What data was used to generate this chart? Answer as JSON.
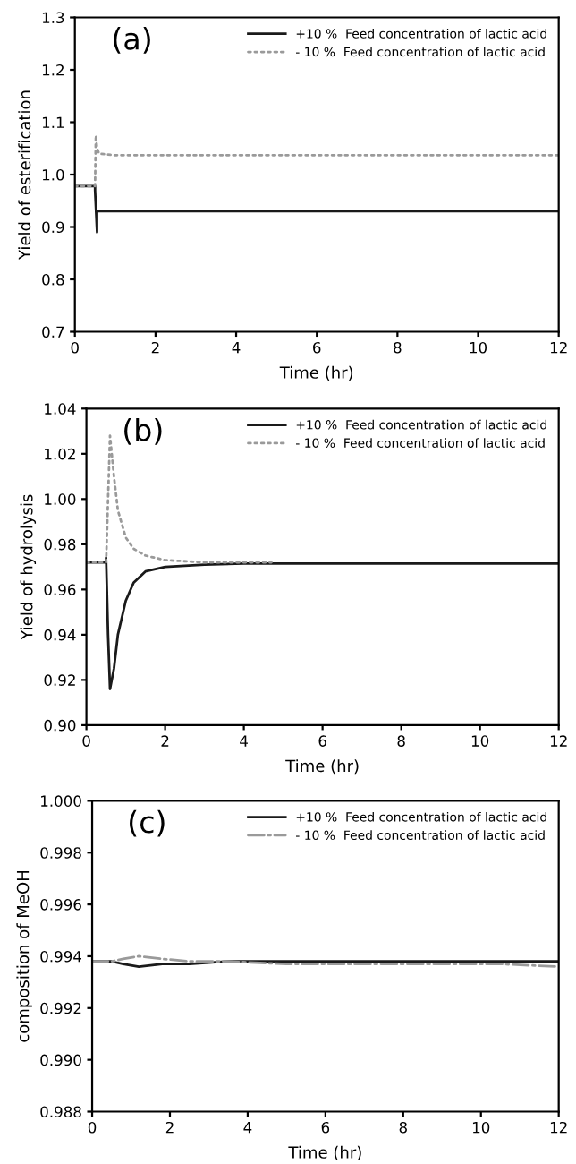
{
  "chart_data": [
    {
      "type": "line",
      "xlabel": "Time (hr)",
      "ylabel": "Yield of esterification",
      "annotations": [
        "(a)"
      ],
      "xlim": [
        0,
        12
      ],
      "xticks": [
        0,
        2,
        4,
        6,
        8,
        10,
        12
      ],
      "ylim": [
        0.7,
        1.3
      ],
      "yticks": [
        0.7,
        0.8,
        0.9,
        {
          "value": 1.0,
          "label": "1.0"
        },
        1.1,
        1.2,
        1.3
      ],
      "legend": "top right",
      "grid": false,
      "series": [
        {
          "name": "+10 %  Feed concentration of lactic acid",
          "color": "#1a1a1a",
          "line_style": "solid",
          "x": [
            0,
            0.5,
            0.5,
            0.55,
            0.55,
            0.6,
            12
          ],
          "values": [
            0.978,
            0.978,
            0.97,
            0.89,
            0.93,
            0.93,
            0.93
          ]
        },
        {
          "name": "- 10 %  Feed concentration of lactic acid",
          "color": "#9a9a9a",
          "line_style": "dotted",
          "x": [
            0,
            0.5,
            0.52,
            0.55,
            0.6,
            1,
            12
          ],
          "values": [
            0.978,
            0.978,
            1.075,
            1.05,
            1.04,
            1.037,
            1.037
          ]
        }
      ]
    },
    {
      "type": "line",
      "xlabel": "Time (hr)",
      "ylabel": "Yield of hydrolysis",
      "annotations": [
        "(b)"
      ],
      "xlim": [
        0,
        12
      ],
      "xticks": [
        0,
        2,
        4,
        6,
        8,
        10,
        12
      ],
      "ylim": [
        0.9,
        1.04
      ],
      "yticks": [
        {
          "value": 0.9,
          "label": "0.90"
        },
        0.92,
        0.94,
        0.96,
        0.98,
        {
          "value": 1.0,
          "label": "1.00"
        },
        1.02,
        1.04
      ],
      "legend": "top right",
      "grid": false,
      "series": [
        {
          "name": "+10 %  Feed concentration of lactic acid",
          "color": "#1a1a1a",
          "line_style": "solid",
          "x": [
            0,
            0.5,
            0.5,
            0.55,
            0.6,
            0.7,
            0.8,
            1.0,
            1.2,
            1.5,
            2,
            3,
            4,
            12
          ],
          "values": [
            0.972,
            0.972,
            0.974,
            0.94,
            0.916,
            0.925,
            0.94,
            0.955,
            0.963,
            0.968,
            0.97,
            0.971,
            0.9715,
            0.9715
          ]
        },
        {
          "name": "- 10 %  Feed concentration of lactic acid",
          "color": "#9a9a9a",
          "line_style": "dotted",
          "x": [
            0,
            0.5,
            0.55,
            0.6,
            0.7,
            0.8,
            1.0,
            1.2,
            1.5,
            2,
            3,
            4.7
          ],
          "values": [
            0.972,
            0.972,
            1.0,
            1.028,
            1.01,
            0.995,
            0.983,
            0.978,
            0.975,
            0.973,
            0.972,
            0.972
          ]
        }
      ]
    },
    {
      "type": "line",
      "xlabel": "Time (hr)",
      "ylabel": "composition of MeOH",
      "annotations": [
        "(c)"
      ],
      "xlim": [
        0,
        12
      ],
      "xticks": [
        0,
        2,
        4,
        6,
        8,
        10,
        12
      ],
      "ylim": [
        0.988,
        1.0
      ],
      "yticks": [
        0.988,
        {
          "value": 0.99,
          "label": "0.990"
        },
        0.992,
        0.994,
        0.996,
        0.998,
        {
          "value": 1.0,
          "label": "1.000"
        }
      ],
      "legend": "top right",
      "grid": false,
      "series": [
        {
          "name": "+10 %  Feed concentration of lactic acid",
          "color": "#1a1a1a",
          "line_style": "solid",
          "x": [
            0,
            0.5,
            0.8,
            1.2,
            1.8,
            2.5,
            3.5,
            5,
            12
          ],
          "values": [
            0.9938,
            0.9938,
            0.9937,
            0.9936,
            0.9937,
            0.9937,
            0.9938,
            0.9938,
            0.9938
          ]
        },
        {
          "name": "- 10 %  Feed concentration of lactic acid",
          "color": "#9a9a9a",
          "line_style": "dashdot",
          "x": [
            0,
            0.5,
            0.8,
            1.2,
            1.8,
            2.5,
            3.5,
            5,
            10.5,
            12
          ],
          "values": [
            0.9938,
            0.9938,
            0.9939,
            0.994,
            0.9939,
            0.9938,
            0.9938,
            0.9937,
            0.9937,
            0.9936
          ]
        }
      ]
    }
  ]
}
